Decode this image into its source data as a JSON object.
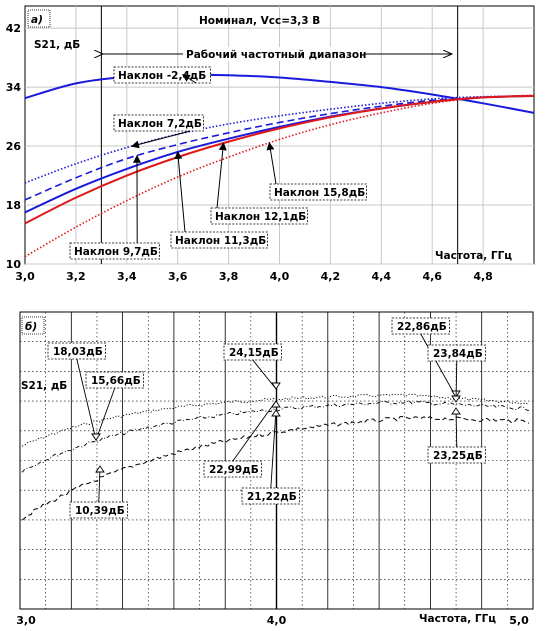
{
  "chart_data": [
    {
      "panel": "а)",
      "type": "line",
      "title": "Номинал, Vcc=3,3 В",
      "ylabel": "S21, дБ",
      "xlabel": "Частота, ГГц",
      "xlim": [
        3.0,
        5.0
      ],
      "ylim": [
        10,
        45
      ],
      "x_ticks": [
        "3,0",
        "3,2",
        "3,4",
        "3,6",
        "3,8",
        "4,0",
        "4,2",
        "4,4",
        "4,6",
        "4,8"
      ],
      "y_ticks": [
        "10",
        "18",
        "26",
        "34",
        "42"
      ],
      "band_label": "Рабочий частотный диапазон",
      "band": [
        3.3,
        4.7
      ],
      "grid": true,
      "series": [
        {
          "name": "Наклон -2,4дБ",
          "color": "#1a1adc",
          "style": "solid",
          "x": [
            3.0,
            3.2,
            3.4,
            3.6,
            3.8,
            4.0,
            4.2,
            4.4,
            4.6,
            4.8,
            5.0
          ],
          "values": [
            32.5,
            34.5,
            35.4,
            35.7,
            35.6,
            35.3,
            34.7,
            34.0,
            33.0,
            31.8,
            30.5
          ]
        },
        {
          "name": "Наклон 7,2дБ",
          "color": "#1a1adc",
          "style": "dotted",
          "x": [
            3.0,
            3.2,
            3.4,
            3.6,
            3.8,
            4.0,
            4.2,
            4.4,
            4.6,
            4.8,
            5.0
          ],
          "values": [
            21.0,
            23.6,
            25.8,
            27.6,
            29.0,
            30.1,
            31.0,
            31.8,
            32.4,
            32.7,
            32.8
          ]
        },
        {
          "name": "Наклон 9,7дБ",
          "color": "#1a1adc",
          "style": "dashed",
          "x": [
            3.0,
            3.2,
            3.4,
            3.6,
            3.8,
            4.0,
            4.2,
            4.4,
            4.6,
            4.8,
            5.0
          ],
          "values": [
            18.7,
            21.7,
            24.3,
            26.2,
            27.8,
            29.2,
            30.4,
            31.4,
            32.2,
            32.6,
            32.8
          ]
        },
        {
          "name": "Наклон 11,3дБ",
          "color": "#1a1adc",
          "style": "solid",
          "x": [
            3.0,
            3.2,
            3.4,
            3.6,
            3.8,
            4.0,
            4.2,
            4.4,
            4.6,
            4.8,
            5.0
          ],
          "values": [
            17.0,
            20.2,
            22.9,
            25.2,
            27.0,
            28.6,
            30.0,
            31.1,
            32.0,
            32.6,
            32.8
          ]
        },
        {
          "name": "Наклон 12,1дБ",
          "color": "#e01818",
          "style": "solid",
          "x": [
            3.0,
            3.2,
            3.4,
            3.6,
            3.8,
            4.0,
            4.2,
            4.4,
            4.6,
            4.8,
            5.0
          ],
          "values": [
            15.5,
            19.0,
            22.0,
            24.5,
            26.6,
            28.4,
            29.9,
            31.1,
            32.0,
            32.6,
            32.8
          ]
        },
        {
          "name": "Наклон 15,8дБ",
          "color": "#e01818",
          "style": "dotted",
          "x": [
            3.0,
            3.2,
            3.4,
            3.6,
            3.8,
            4.0,
            4.2,
            4.4,
            4.6,
            4.8,
            5.0
          ],
          "values": [
            11.0,
            15.0,
            18.6,
            21.8,
            24.5,
            26.9,
            28.9,
            30.5,
            31.8,
            32.6,
            32.9
          ]
        }
      ],
      "annotations": [
        "Наклон -2,4дБ",
        "Наклон 7,2дБ",
        "Наклон 15,8дБ",
        "Наклон 12,1дБ",
        "Наклон 9,7дБ",
        "Наклон 11,3дБ"
      ]
    },
    {
      "panel": "б)",
      "type": "line",
      "ylabel": "S21, дБ",
      "xlabel": "Частота, ГГц",
      "xlim": [
        3.0,
        5.0
      ],
      "x_ticks": [
        "3,0",
        "4,0",
        "5,0"
      ],
      "grid": true,
      "series": [
        {
          "name": "",
          "style": "dotted",
          "values": []
        },
        {
          "name": "",
          "style": "dash-dot",
          "values": []
        },
        {
          "name": "",
          "style": "dashed",
          "values": []
        }
      ],
      "markers": [
        {
          "label": "18,03дБ",
          "x": 3.15
        },
        {
          "label": "15,66дБ",
          "x": 3.15
        },
        {
          "label": "10,39дБ",
          "x": 3.15
        },
        {
          "label": "24,15дБ",
          "x": 4.0
        },
        {
          "label": "22,99дБ",
          "x": 4.0
        },
        {
          "label": "21,22дБ",
          "x": 4.0
        },
        {
          "label": "22,86дБ",
          "x": 4.7
        },
        {
          "label": "23,84дБ",
          "x": 4.7
        },
        {
          "label": "23,25дБ",
          "x": 4.7
        }
      ]
    }
  ]
}
